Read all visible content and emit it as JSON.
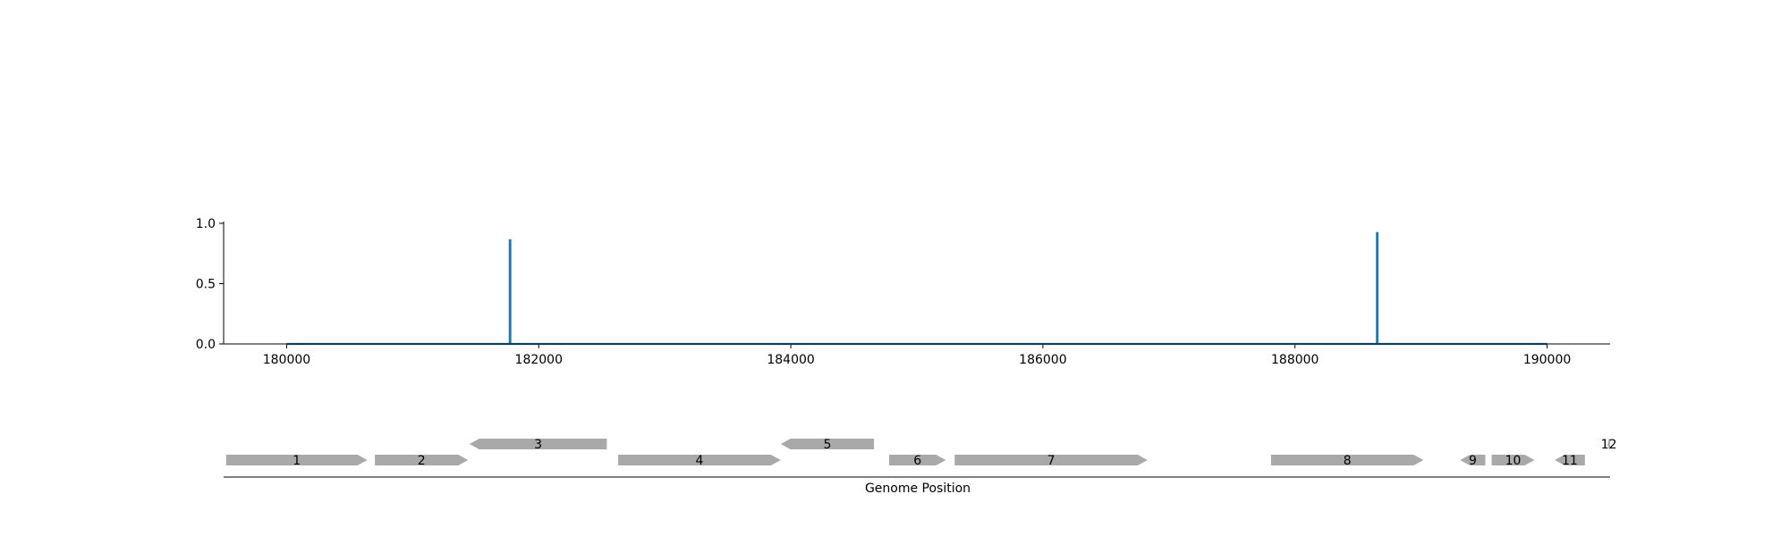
{
  "chart_data": [
    {
      "type": "line",
      "title": "",
      "xlabel": "",
      "ylabel": "",
      "xlim": [
        179500,
        190500
      ],
      "ylim": [
        0,
        1.0
      ],
      "xticks": [
        180000,
        182000,
        184000,
        186000,
        188000,
        190000
      ],
      "xtick_labels": [
        "180000",
        "182000",
        "184000",
        "186000",
        "188000",
        "190000"
      ],
      "yticks": [
        0.0,
        0.5,
        1.0
      ],
      "ytick_labels": [
        "0.0",
        "0.5",
        "1.0"
      ],
      "grid": false,
      "series": [
        {
          "color": "#1f77b4",
          "x": [
            180000,
            181770,
            181770,
            181775,
            181775,
            188650,
            188650,
            188655,
            188655,
            190000
          ],
          "y": [
            0,
            0,
            0.86,
            0.86,
            0,
            0,
            0.92,
            0.92,
            0,
            0
          ]
        }
      ]
    },
    {
      "type": "gene-track",
      "xlabel": "Genome Position",
      "xlim": [
        179500,
        190500
      ],
      "color": "#a9a9a9",
      "genes": [
        {
          "label": "1",
          "start": 179520,
          "end": 180640,
          "strand": "+",
          "row": 0
        },
        {
          "label": "2",
          "start": 180700,
          "end": 181440,
          "strand": "+",
          "row": 0
        },
        {
          "label": "3",
          "start": 181450,
          "end": 182540,
          "strand": "-",
          "row": 1
        },
        {
          "label": "4",
          "start": 182630,
          "end": 183920,
          "strand": "+",
          "row": 0
        },
        {
          "label": "5",
          "start": 183920,
          "end": 184660,
          "strand": "-",
          "row": 1
        },
        {
          "label": "6",
          "start": 184780,
          "end": 185230,
          "strand": "+",
          "row": 0
        },
        {
          "label": "7",
          "start": 185300,
          "end": 186830,
          "strand": "+",
          "row": 0
        },
        {
          "label": "8",
          "start": 187810,
          "end": 189020,
          "strand": "+",
          "row": 0
        },
        {
          "label": "9",
          "start": 189310,
          "end": 189510,
          "strand": "-",
          "row": 0
        },
        {
          "label": "10",
          "start": 189560,
          "end": 189900,
          "strand": "+",
          "row": 0
        },
        {
          "label": "11",
          "start": 190060,
          "end": 190300,
          "strand": "-",
          "row": 0
        },
        {
          "label": "12",
          "start": 190480,
          "end": 190500,
          "strand": "-",
          "row": 1
        }
      ]
    }
  ]
}
